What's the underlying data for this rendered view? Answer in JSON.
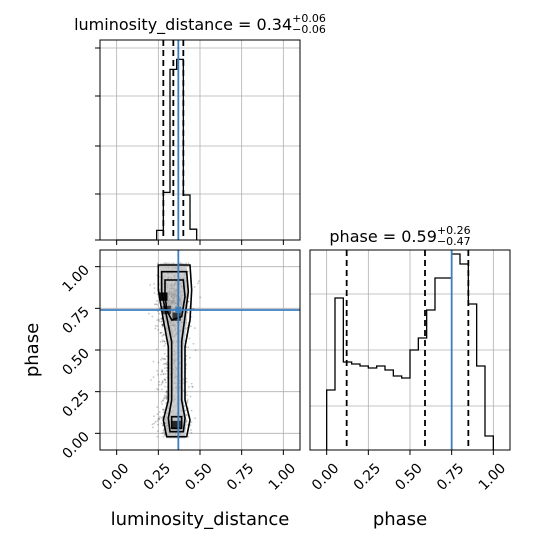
{
  "chart_data": [
    {
      "type": "histogram",
      "panel": "top-left",
      "parameter": "luminosity_distance",
      "title": {
        "prefix": "luminosity_distance = 0.34",
        "plus": "+0.06",
        "minus": "−0.06"
      },
      "xlim": [
        -0.1,
        1.1
      ],
      "bin_edges": [
        0.0,
        0.04,
        0.08,
        0.12,
        0.16,
        0.2,
        0.24,
        0.28,
        0.32,
        0.36,
        0.4,
        0.44,
        0.48
      ],
      "counts": [
        0.0,
        0.0,
        0.0,
        0.0,
        0.0,
        0.0,
        0.048,
        0.238,
        0.853,
        0.903,
        0.225,
        0.054,
        0.0
      ],
      "quantiles": [
        0.28,
        0.34,
        0.4
      ],
      "truth": 0.37
    },
    {
      "type": "heatmap",
      "panel": "bottom-left",
      "xparam": "luminosity_distance",
      "yparam": "phase",
      "xlabel": "luminosity_distance",
      "ylabel": "phase",
      "xlim": [
        -0.1,
        1.1
      ],
      "ylim": [
        -0.1,
        1.1
      ],
      "xticks": [
        "0.00",
        "0.25",
        "0.50",
        "0.75",
        "1.00"
      ],
      "yticks": [
        "0.00",
        "0.25",
        "0.50",
        "0.75",
        "1.00"
      ],
      "grid": true,
      "truth": {
        "x": 0.37,
        "y": 0.74
      },
      "density_bins": [
        {
          "x": 0.28,
          "y": 0.82,
          "v": 0.95
        },
        {
          "x": 0.3,
          "y": 0.74,
          "v": 0.75
        },
        {
          "x": 0.36,
          "y": 0.7,
          "v": 0.8
        },
        {
          "x": 0.36,
          "y": 0.05,
          "v": 0.85
        }
      ]
    },
    {
      "type": "histogram",
      "panel": "bottom-right",
      "parameter": "phase",
      "title": {
        "prefix": "phase = 0.59",
        "plus": "+0.26",
        "minus": "−0.47"
      },
      "xlabel": "phase",
      "xlim": [
        -0.1,
        1.1
      ],
      "xticks": [
        "0.00",
        "0.25",
        "0.50",
        "0.75",
        "1.00"
      ],
      "grid": true,
      "bin_edges": [
        0.0,
        0.05,
        0.1,
        0.15,
        0.2,
        0.25,
        0.3,
        0.35,
        0.4,
        0.45,
        0.5,
        0.55,
        0.6,
        0.65,
        0.7,
        0.75,
        0.8,
        0.85,
        0.9,
        0.95,
        1.0
      ],
      "counts": [
        0.3,
        0.76,
        0.44,
        0.43,
        0.42,
        0.41,
        0.42,
        0.4,
        0.37,
        0.36,
        0.5,
        0.56,
        0.7,
        0.86,
        0.86,
        0.98,
        0.93,
        0.73,
        0.42,
        0.07
      ],
      "quantiles": [
        0.12,
        0.59,
        0.85
      ],
      "truth": 0.75
    }
  ]
}
